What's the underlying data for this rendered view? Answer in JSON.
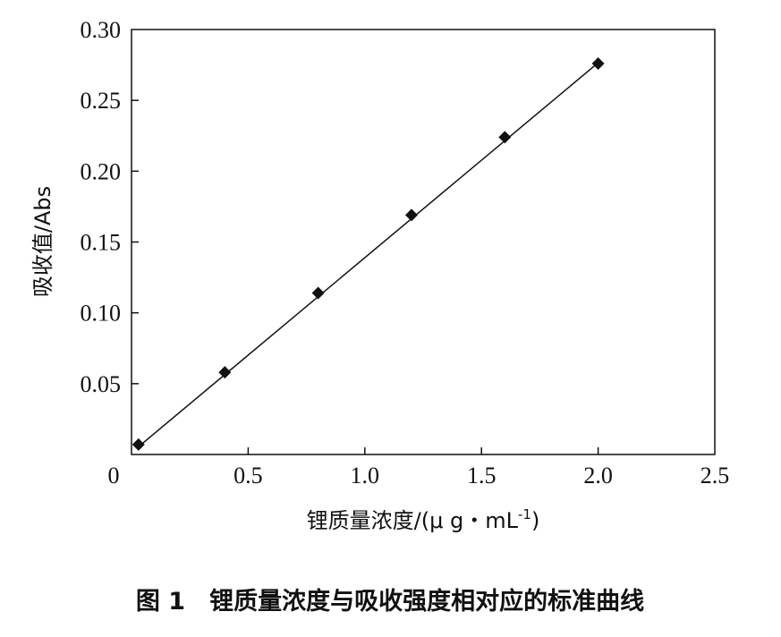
{
  "chart_data": {
    "type": "scatter",
    "xlabel": "锂质量浓度/(μ g・mL",
    "xlabel_sup": "-1",
    "xlabel_close": ")",
    "ylabel": "吸收值/Abs",
    "xlim": [
      0,
      2.5
    ],
    "ylim": [
      0,
      0.3
    ],
    "x_ticks": [
      0,
      0.5,
      1.0,
      1.5,
      2.0,
      2.5
    ],
    "x_tick_labels": [
      "0",
      "0.5",
      "1.0",
      "1.5",
      "2.0",
      "2.5"
    ],
    "y_ticks": [
      0.05,
      0.1,
      0.15,
      0.2,
      0.25,
      0.3
    ],
    "y_tick_labels": [
      "0.05",
      "0.10",
      "0.15",
      "0.20",
      "0.25",
      "0.30"
    ],
    "grid": false,
    "marker": "diamond",
    "series": [
      {
        "x": [
          0.03,
          0.4,
          0.8,
          1.2,
          1.6,
          2.0
        ],
        "y": [
          0.007,
          0.058,
          0.114,
          0.169,
          0.224,
          0.276
        ]
      }
    ],
    "fit_line": {
      "x": [
        0.03,
        2.0
      ],
      "y": [
        0.0055,
        0.2765
      ]
    }
  },
  "caption": "图 1　锂质量浓度与吸收强度相对应的标准曲线",
  "colors": {
    "ink": "#111111",
    "background": "#ffffff"
  }
}
